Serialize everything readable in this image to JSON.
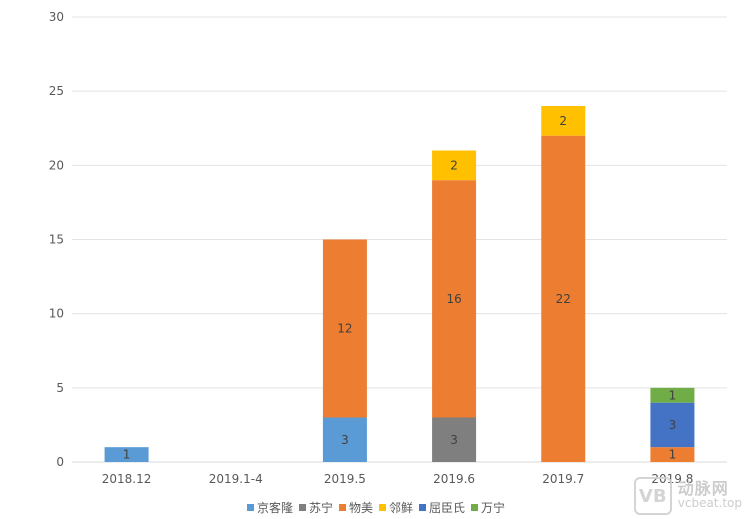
{
  "chart_data": {
    "type": "bar",
    "stacked": true,
    "categories": [
      "2018.12",
      "2019.1-4",
      "2019.5",
      "2019.6",
      "2019.7",
      "2019.8"
    ],
    "series": [
      {
        "name": "京客隆",
        "color": "#5b9bd5",
        "values": [
          1,
          0,
          3,
          0,
          0,
          0
        ]
      },
      {
        "name": "苏宁",
        "color": "#7f7f7f",
        "values": [
          0,
          0,
          0,
          3,
          0,
          0
        ]
      },
      {
        "name": "物美",
        "color": "#ed7d31",
        "values": [
          0,
          0,
          12,
          16,
          22,
          1
        ]
      },
      {
        "name": "邻鲜",
        "color": "#ffc000",
        "values": [
          0,
          0,
          0,
          2,
          2,
          0
        ]
      },
      {
        "name": "屈臣氏",
        "color": "#4472c4",
        "values": [
          0,
          0,
          0,
          0,
          0,
          3
        ]
      },
      {
        "name": "万宁",
        "color": "#70ad47",
        "values": [
          0,
          0,
          0,
          0,
          0,
          1
        ]
      }
    ],
    "ylim": [
      0,
      30
    ],
    "yticks": [
      0,
      5,
      10,
      15,
      20,
      25,
      30
    ],
    "grid": true,
    "legend_position": "bottom",
    "data_labels": true
  },
  "watermark": {
    "logo": "VB",
    "text_cn": "动脉网",
    "url": "vcbeat.top"
  }
}
